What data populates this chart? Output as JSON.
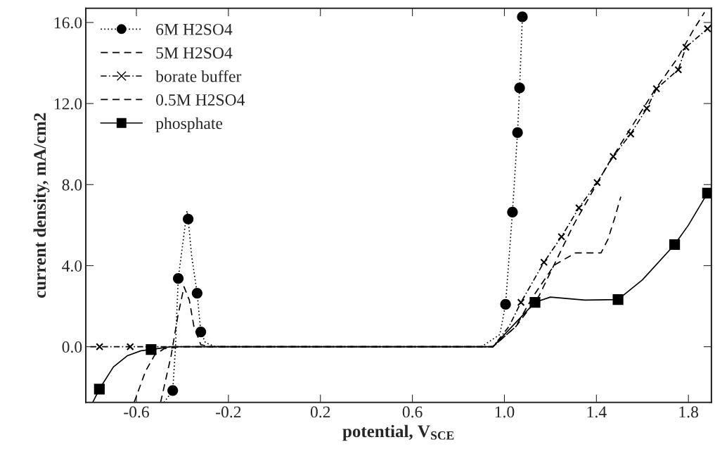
{
  "chart_data": {
    "type": "line",
    "xlabel": "potential, V$_{SCE}$",
    "ylabel": "current density, mA/cm2",
    "xlim": [
      -0.82,
      1.9
    ],
    "ylim": [
      -2.75,
      16.7
    ],
    "xticks": [
      -0.6,
      -0.2,
      0.2,
      0.6,
      {
        "value": 1.0,
        "label": "1.0"
      },
      1.4,
      1.8
    ],
    "yticks": [
      {
        "value": 0,
        "label": "0.0"
      },
      {
        "value": 4,
        "label": "4.0"
      },
      {
        "value": 8,
        "label": "8.0"
      },
      {
        "value": 12,
        "label": "12.0"
      },
      {
        "value": 16,
        "label": "16.0"
      }
    ],
    "grid": false,
    "legend": "top left",
    "series": [
      {
        "name": "6M H2SO4",
        "color": "#000000",
        "line_style": "dotted",
        "x": [
          -0.48,
          -0.442,
          -0.43,
          -0.418,
          -0.38,
          -0.375,
          -0.36,
          -0.336,
          -0.32,
          -0.3,
          -0.26,
          -0.2,
          0.9,
          0.98,
          1.005,
          1.035,
          1.057,
          1.066,
          1.078
        ],
        "values": [
          -2.75,
          -2.16,
          0,
          3.37,
          6.7,
          6.3,
          4.5,
          2.64,
          0.73,
          0.2,
          0.02,
          0,
          0,
          0.6,
          2.09,
          6.64,
          10.57,
          12.77,
          16.28
        ]
      },
      {
        "type": "scatter",
        "color": "#000000",
        "marker": "circle",
        "x": [
          -0.442,
          -0.418,
          -0.375,
          -0.336,
          -0.32,
          1.005,
          1.035,
          1.057,
          1.066,
          1.078
        ],
        "values": [
          -2.16,
          3.37,
          6.3,
          2.64,
          0.73,
          2.09,
          6.64,
          10.57,
          12.77,
          16.28
        ]
      },
      {
        "name": "5M H2SO4",
        "color": "#000000",
        "line_style": "dashed",
        "x": [
          -0.495,
          -0.45,
          -0.42,
          -0.393,
          -0.37,
          -0.35,
          -0.32,
          -0.28,
          0.95,
          1.05,
          1.12,
          1.217,
          1.309,
          1.42,
          1.45,
          1.48,
          1.506
        ],
        "values": [
          -2.75,
          -0.5,
          1.5,
          2.96,
          2.3,
          1.0,
          0.1,
          0,
          0,
          1.0,
          2.4,
          4.03,
          4.63,
          4.63,
          5.3,
          6.37,
          7.4
        ]
      },
      {
        "name": "borate buffer",
        "color": "#000000",
        "line_style": "dashdot",
        "x": [
          -0.8,
          -0.76,
          -0.627,
          -0.55,
          0.95,
          1.02,
          1.072,
          1.172,
          1.248,
          1.324,
          1.403,
          1.473,
          1.549,
          1.619,
          1.661,
          1.756,
          1.789,
          1.883,
          1.9
        ],
        "values": [
          0,
          0,
          0,
          0,
          0,
          1.0,
          2.19,
          4.17,
          5.43,
          6.85,
          8.1,
          9.39,
          10.5,
          11.76,
          12.73,
          13.67,
          14.78,
          15.69,
          15.9
        ]
      },
      {
        "type": "scatter",
        "color": "#000000",
        "marker": "cross",
        "x": [
          -0.76,
          -0.627,
          1.072,
          1.172,
          1.248,
          1.324,
          1.403,
          1.473,
          1.549,
          1.619,
          1.661,
          1.756,
          1.789,
          1.883
        ],
        "values": [
          0,
          0,
          2.19,
          4.17,
          5.43,
          6.85,
          8.1,
          9.39,
          10.5,
          11.76,
          12.73,
          13.67,
          14.78,
          15.69
        ]
      },
      {
        "name": "0.5M H2SO4",
        "color": "#000000",
        "line_style": "dashed",
        "x": [
          -0.61,
          -0.56,
          -0.52,
          -0.48,
          -0.4,
          0.95,
          1.05,
          1.15,
          1.3,
          1.45,
          1.55,
          1.65,
          1.75,
          1.82,
          1.87
        ],
        "values": [
          -2.75,
          -1.2,
          -0.4,
          -0.1,
          0,
          0,
          1.0,
          2.5,
          6.0,
          9.0,
          10.8,
          12.6,
          14.2,
          15.6,
          16.5
        ]
      },
      {
        "name": "phosphate",
        "color": "#000000",
        "line_style": "solid",
        "x": [
          -0.79,
          -0.761,
          -0.7,
          -0.64,
          -0.58,
          -0.536,
          -0.45,
          0.95,
          1.05,
          1.133,
          1.2,
          1.35,
          1.494,
          1.6,
          1.74,
          1.8,
          1.883,
          1.9
        ],
        "values": [
          -2.75,
          -2.09,
          -1.0,
          -0.45,
          -0.2,
          -0.14,
          0,
          0,
          1.2,
          2.19,
          2.45,
          2.3,
          2.33,
          3.3,
          5.04,
          6.0,
          7.58,
          7.8
        ]
      },
      {
        "type": "scatter",
        "color": "#000000",
        "marker": "square",
        "x": [
          -0.761,
          -0.536,
          1.133,
          1.494,
          1.74,
          1.883
        ],
        "values": [
          -2.09,
          -0.14,
          2.19,
          2.33,
          5.04,
          7.58
        ]
      }
    ]
  }
}
